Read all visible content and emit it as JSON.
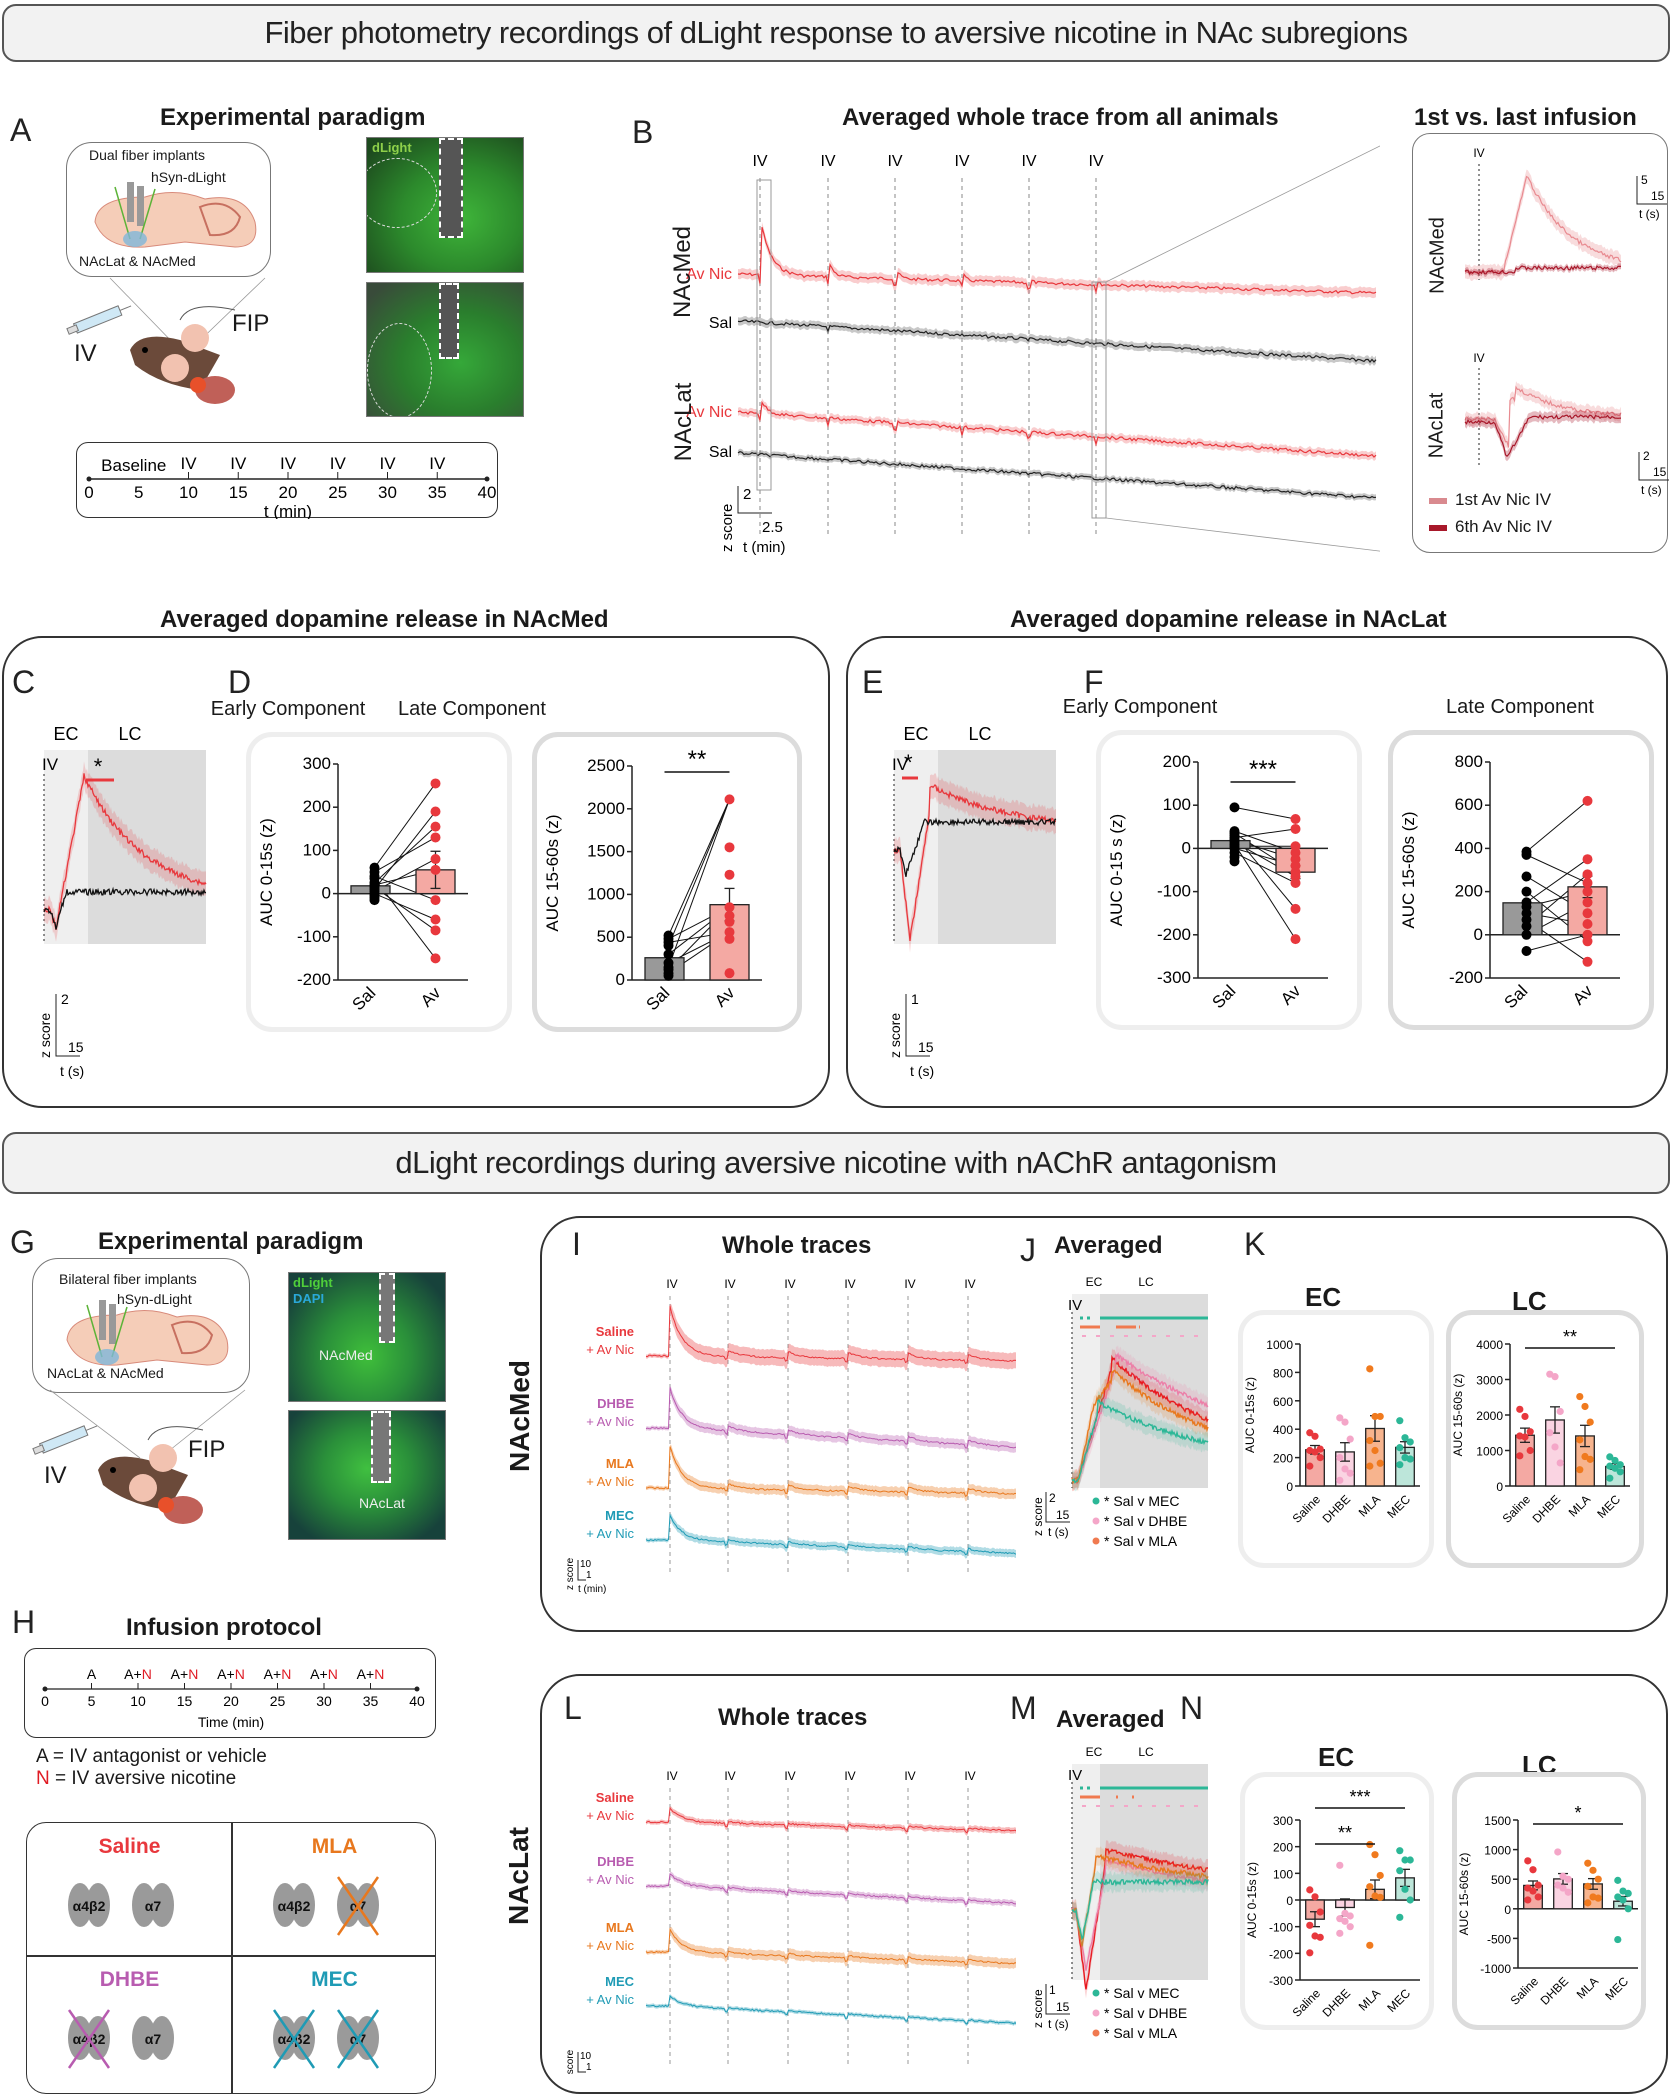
{
  "banners": {
    "top": "Fiber photometry recordings of dLight response to aversive nicotine in NAc subregions",
    "bottom": "dLight recordings during aversive nicotine with nAChR antagonism"
  },
  "panelA": {
    "letter": "A",
    "title": "Experimental paradigm",
    "inset": {
      "line1": "Dual fiber implants",
      "line2": "hSyn-dLight",
      "line3": "NAcLat & NAcMed"
    },
    "iv_label": "IV",
    "fip_label": "FIP",
    "image_label": "dLight",
    "timeline": {
      "baseline": "Baseline",
      "iv_label": "IV",
      "iv_times": [
        10,
        15,
        20,
        25,
        30,
        35
      ],
      "ticks": [
        "0",
        "5",
        "10",
        "15",
        "20",
        "25",
        "30",
        "35",
        "40"
      ],
      "xlabel": "t (min)"
    }
  },
  "panelB": {
    "letter": "B",
    "title": "Averaged whole trace from all animals",
    "iv_label": "IV",
    "regions": [
      "NAcMed",
      "NAcLat"
    ],
    "trace_labels": {
      "av": "Av Nic",
      "sal": "Sal"
    },
    "scalebar": {
      "y": "2",
      "x": "2.5",
      "ylabel": "z score",
      "xlabel": "t (min)"
    },
    "inset": {
      "title": "1st vs. last infusion",
      "iv_label": "IV",
      "regions": [
        "NAcMed",
        "NAcLat"
      ],
      "scalebar_med": {
        "y": "5",
        "x": "15",
        "ylabel": "z score",
        "xlabel": "t (s)"
      },
      "scalebar_lat": {
        "y": "2",
        "x": "15",
        "ylabel": "z score",
        "xlabel": "t (s)"
      },
      "legend": [
        {
          "label": "1st Av Nic IV",
          "color": "#d98a8f"
        },
        {
          "label": "6th Av Nic IV",
          "color": "#a8182a"
        }
      ]
    }
  },
  "panelCD": {
    "title": "Averaged dopamine release in NAcMed",
    "letterC": "C",
    "letterD": "D",
    "ec": "EC",
    "lc": "LC",
    "iv": "IV",
    "sig": "*",
    "scalebar": {
      "y": "2",
      "x": "15",
      "ylabel": "z score",
      "xlabel": "t (s)"
    },
    "early_title": "Early Component",
    "late_title": "Late Component"
  },
  "panelEF": {
    "title": "Averaged dopamine release in NAcLat",
    "letterE": "E",
    "letterF": "F",
    "ec": "EC",
    "lc": "LC",
    "iv": "IV",
    "sig": "*",
    "scalebar": {
      "y": "1",
      "x": "15",
      "ylabel": "z score",
      "xlabel": "t (s)"
    },
    "early_title": "Early Component",
    "late_title": "Late Component"
  },
  "panelG": {
    "letter": "G",
    "title": "Experimental paradigm",
    "inset": {
      "line1": "Bilateral fiber implants",
      "line2": "hSyn-dLight",
      "line3": "NAcLat & NAcMed"
    },
    "iv_label": "IV",
    "fip_label": "FIP",
    "img1_labels": {
      "dlight": "dLight",
      "dapi": "DAPI",
      "region": "NAcMed"
    },
    "img2_labels": {
      "region": "NAcLat"
    }
  },
  "panelH": {
    "letter": "H",
    "title": "Infusion protocol",
    "events": [
      {
        "t": 5,
        "a": "A",
        "n": ""
      },
      {
        "t": 10,
        "a": "A+",
        "n": "N"
      },
      {
        "t": 15,
        "a": "A+",
        "n": "N"
      },
      {
        "t": 20,
        "a": "A+",
        "n": "N"
      },
      {
        "t": 25,
        "a": "A+",
        "n": "N"
      },
      {
        "t": 30,
        "a": "A+",
        "n": "N"
      },
      {
        "t": 35,
        "a": "A+",
        "n": "N"
      }
    ],
    "ticks": [
      "0",
      "5",
      "10",
      "15",
      "20",
      "25",
      "30",
      "35",
      "40"
    ],
    "xlabel": "Time (min)",
    "legend_a": "A = IV antagonist or vehicle",
    "legend_n_key": "N",
    "legend_n": " = IV aversive nicotine",
    "groups": [
      {
        "name": "Saline",
        "color": "#e8383d",
        "blocked": []
      },
      {
        "name": "MLA",
        "color": "#e8781e",
        "blocked": [
          "a7"
        ]
      },
      {
        "name": "DHBE",
        "color": "#b85cb0",
        "blocked": [
          "a4b2"
        ]
      },
      {
        "name": "MEC",
        "color": "#1f9bb5",
        "blocked": [
          "a4b2",
          "a7"
        ]
      }
    ],
    "receptor_a4b2": "α4β2",
    "receptor_a7": "α7"
  },
  "panelIJK": {
    "region": "NAcMed",
    "letterI": "I",
    "letterJ": "J",
    "letterK": "K",
    "whole_title": "Whole traces",
    "avg_title": "Averaged",
    "iv_label": "IV",
    "groups": [
      {
        "name": "Saline",
        "suffix": "+ Av Nic",
        "color": "#e8383d"
      },
      {
        "name": "DHBE",
        "suffix": "+ Av Nic",
        "color": "#b85cb0"
      },
      {
        "name": "MLA",
        "suffix": "+ Av Nic",
        "color": "#e8781e"
      },
      {
        "name": "MEC",
        "suffix": "+ Av Nic",
        "color": "#1f9bb5"
      }
    ],
    "scalebar_whole": {
      "y": "10",
      "x": "1",
      "ylabel": "z score",
      "xlabel": "t (min)"
    },
    "scalebar_avg": {
      "y": "2",
      "x": "15",
      "ylabel": "z score",
      "xlabel": "t (s)"
    },
    "ec": "EC",
    "lc": "LC",
    "sig_legend": [
      {
        "label": "* Sal v MEC",
        "color": "#2cb797"
      },
      {
        "label": "* Sal v DHBE",
        "color": "#f4a6c8"
      },
      {
        "label": "* Sal v MLA",
        "color": "#f07a50"
      }
    ],
    "k_ec_title": "EC",
    "k_lc_title": "LC"
  },
  "panelLMN": {
    "region": "NAcLat",
    "letterL": "L",
    "letterM": "M",
    "letterN": "N",
    "whole_title": "Whole traces",
    "avg_title": "Averaged",
    "iv_label": "IV",
    "groups": [
      {
        "name": "Saline",
        "suffix": "+ Av Nic",
        "color": "#e8383d"
      },
      {
        "name": "DHBE",
        "suffix": "+ Av Nic",
        "color": "#b85cb0"
      },
      {
        "name": "MLA",
        "suffix": "+ Av Nic",
        "color": "#e8781e"
      },
      {
        "name": "MEC",
        "suffix": "+ Av Nic",
        "color": "#1f9bb5"
      }
    ],
    "scalebar_whole": {
      "y": "10",
      "x": "1",
      "ylabel": "z score",
      "xlabel": "t (min)"
    },
    "scalebar_avg": {
      "y": "1",
      "x": "15",
      "ylabel": "z score",
      "xlabel": "t (s)"
    },
    "ec": "EC",
    "lc": "LC",
    "sig_legend": [
      {
        "label": "* Sal v MEC",
        "color": "#2cb797"
      },
      {
        "label": "* Sal v DHBE",
        "color": "#f4a6c8"
      },
      {
        "label": "* Sal v MLA",
        "color": "#f07a50"
      }
    ],
    "n_ec_title": "EC",
    "n_lc_title": "LC"
  },
  "chart_data": [
    {
      "id": "D-early",
      "type": "bar",
      "title": "Early Component",
      "ylabel": "AUC 0-15s (z)",
      "ylim": [
        -200,
        300
      ],
      "yticks": [
        -200,
        -100,
        0,
        100,
        200,
        300
      ],
      "categories": [
        "Sal",
        "Av"
      ],
      "values": [
        18,
        55
      ],
      "sem": [
        0,
        43
      ],
      "bar_colors": [
        "#999999",
        "#f4a9a3"
      ],
      "points": [
        [
          60,
          50,
          40,
          35,
          25,
          20,
          15,
          10,
          5,
          0,
          -5,
          -10,
          -15
        ],
        [
          255,
          190,
          155,
          130,
          80,
          55,
          -15,
          -60,
          -85,
          -150
        ]
      ],
      "point_colors": [
        "#000000",
        "#e8383d"
      ],
      "significance": ""
    },
    {
      "id": "D-late",
      "type": "bar",
      "title": "Late Component",
      "ylabel": "AUC 15-60s (z)",
      "ylim": [
        0,
        2500
      ],
      "yticks": [
        0,
        500,
        1000,
        1500,
        2000,
        2500
      ],
      "categories": [
        "Sal",
        "Av"
      ],
      "values": [
        260,
        880
      ],
      "sem": [
        0,
        190
      ],
      "bar_colors": [
        "#999999",
        "#f4a9a3"
      ],
      "points": [
        [
          520,
          480,
          440,
          400,
          300,
          200,
          150,
          120,
          80,
          50
        ],
        [
          2110,
          1550,
          1230,
          850,
          750,
          680,
          560,
          480,
          80
        ]
      ],
      "point_colors": [
        "#000000",
        "#e8383d"
      ],
      "significance": "**"
    },
    {
      "id": "F-early",
      "type": "bar",
      "title": "Early Component",
      "ylabel": "AUC 0-15 s (z)",
      "ylim": [
        -300,
        200
      ],
      "yticks": [
        -300,
        -200,
        -100,
        0,
        100,
        200
      ],
      "categories": [
        "Sal",
        "Av"
      ],
      "values": [
        18,
        -55
      ],
      "sem": [
        0,
        15
      ],
      "bar_colors": [
        "#999999",
        "#f4a9a3"
      ],
      "points": [
        [
          95,
          40,
          35,
          30,
          25,
          20,
          15,
          10,
          5,
          0,
          -10,
          -20,
          -30
        ],
        [
          68,
          45,
          5,
          -10,
          -25,
          -40,
          -55,
          -65,
          -80,
          -140,
          -210
        ]
      ],
      "point_colors": [
        "#000000",
        "#e8383d"
      ],
      "significance": "***"
    },
    {
      "id": "F-late",
      "type": "bar",
      "title": "Late Component",
      "ylabel": "AUC 15-60s (z)",
      "ylim": [
        -200,
        800
      ],
      "yticks": [
        -200,
        0,
        200,
        400,
        600,
        800
      ],
      "categories": [
        "Sal",
        "Av"
      ],
      "values": [
        148,
        222
      ],
      "sem": [
        0,
        50
      ],
      "bar_colors": [
        "#999999",
        "#f4a9a3"
      ],
      "points": [
        [
          385,
          370,
          270,
          200,
          150,
          130,
          100,
          70,
          40,
          0,
          -75
        ],
        [
          620,
          350,
          280,
          240,
          200,
          150,
          100,
          50,
          0,
          -30,
          -125
        ]
      ],
      "point_colors": [
        "#000000",
        "#e8383d"
      ],
      "significance": ""
    },
    {
      "id": "K-EC",
      "type": "bar",
      "title": "EC",
      "ylabel": "AUC 0-15s (z)",
      "ylim": [
        0,
        1000
      ],
      "yticks": [
        0,
        200,
        400,
        600,
        800,
        1000
      ],
      "categories": [
        "Saline",
        "DHBE",
        "MLA",
        "MEC"
      ],
      "values": [
        255,
        240,
        405,
        272
      ],
      "sem": [
        30,
        65,
        90,
        40
      ],
      "bar_colors": [
        "#f4a9a3",
        "#fad4e2",
        "#f7b48e",
        "#bde6da"
      ],
      "point_colors": [
        "#e8383d",
        "#f4a6c8",
        "#f07a1e",
        "#2cb797"
      ],
      "points": [
        [
          375,
          350,
          260,
          250,
          240,
          200,
          140
        ],
        [
          480,
          450,
          330,
          200,
          120,
          90,
          40
        ],
        [
          825,
          490,
          490,
          320,
          250,
          160,
          140
        ],
        [
          460,
          340,
          310,
          270,
          200,
          190,
          150
        ]
      ],
      "significance": ""
    },
    {
      "id": "K-LC",
      "type": "bar",
      "title": "LC",
      "ylabel": "AUC 15-60s (z)",
      "ylim": [
        0,
        4000
      ],
      "yticks": [
        0,
        1000,
        2000,
        3000,
        4000
      ],
      "categories": [
        "Saline",
        "DHBE",
        "MLA",
        "MEC"
      ],
      "values": [
        1430,
        1860,
        1410,
        550
      ],
      "sem": [
        200,
        370,
        300,
        80
      ],
      "bar_colors": [
        "#f4a9a3",
        "#fad4e2",
        "#f7b48e",
        "#bde6da"
      ],
      "point_colors": [
        "#e8383d",
        "#f4a6c8",
        "#f07a1e",
        "#2cb797"
      ],
      "points": [
        [
          2160,
          1960,
          1530,
          1410,
          1380,
          1000,
          850
        ],
        [
          3150,
          3080,
          2100,
          1500,
          1100,
          650
        ],
        [
          2520,
          2240,
          1800,
          1300,
          830,
          750,
          460
        ],
        [
          820,
          720,
          600,
          560,
          500,
          400,
          220
        ]
      ],
      "significance": "**"
    },
    {
      "id": "N-EC",
      "type": "bar",
      "title": "EC",
      "ylabel": "AUC 0-15s (z)",
      "ylim": [
        -300,
        300
      ],
      "yticks": [
        -300,
        -200,
        -100,
        0,
        100,
        200,
        300
      ],
      "categories": [
        "Saline",
        "DHBE",
        "MLA",
        "MEC"
      ],
      "values": [
        -72,
        -28,
        40,
        83
      ],
      "sem": [
        28,
        32,
        35,
        32
      ],
      "bar_colors": [
        "#f4a9a3",
        "#fad4e2",
        "#f7b48e",
        "#bde6da"
      ],
      "point_colors": [
        "#e8383d",
        "#f4a6c8",
        "#f07a1e",
        "#2cb797"
      ],
      "points": [
        [
          38,
          12,
          -45,
          -95,
          -135,
          -140,
          -198
        ],
        [
          130,
          -50,
          -60,
          -70,
          -80,
          -100,
          -125
        ],
        [
          208,
          170,
          92,
          50,
          15,
          10,
          -170
        ],
        [
          185,
          150,
          150,
          110,
          40,
          0,
          -65
        ]
      ],
      "significance": [
        "**",
        "***"
      ]
    },
    {
      "id": "N-LC",
      "type": "bar",
      "title": "LC",
      "ylabel": "AUC 15-60s (z)",
      "ylim": [
        -1000,
        1500
      ],
      "yticks": [
        -1000,
        -500,
        0,
        500,
        1000,
        1500
      ],
      "categories": [
        "Saline",
        "DHBE",
        "MLA",
        "MEC"
      ],
      "values": [
        395,
        505,
        420,
        128
      ],
      "sem": [
        75,
        90,
        90,
        80
      ],
      "bar_colors": [
        "#f4a9a3",
        "#fad4e2",
        "#f7b48e",
        "#bde6da"
      ],
      "point_colors": [
        "#e8383d",
        "#f4a6c8",
        "#f07a1e",
        "#2cb797"
      ],
      "points": [
        [
          810,
          660,
          400,
          350,
          300,
          200,
          150
        ],
        [
          960,
          550,
          500,
          400,
          350,
          280
        ],
        [
          770,
          650,
          500,
          380,
          200,
          180,
          100
        ],
        [
          480,
          300,
          260,
          200,
          150,
          0,
          -520
        ]
      ],
      "significance": "*"
    }
  ]
}
